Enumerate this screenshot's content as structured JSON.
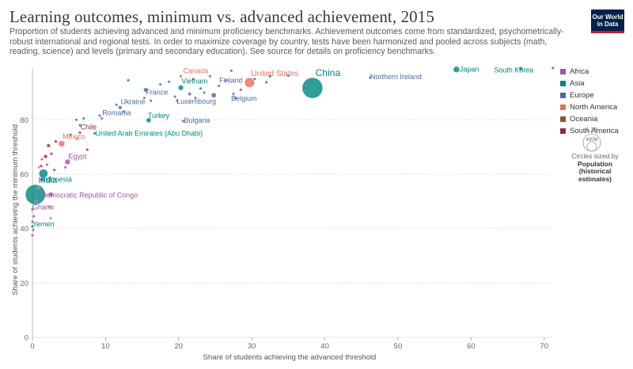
{
  "header": {
    "title": "Learning outcomes, minimum vs. advanced achievement, 2015",
    "subtitle": "Proportion of students achieving advanced and minimum proficiency benchmarks. Achievement outcomes come from standardized, psychometrically-robust international and regional tests. In order to maximize coverage by country, tests have been harmonized and pooled across subjects (math, reading, science) and levels (primary and secondary education). See source for details on proficiency benchmarks.",
    "logo_line1": "Our World",
    "logo_line2": "in Data"
  },
  "colors": {
    "Africa": "#a2559c",
    "Asia": "#00847e",
    "Europe": "#4c6a9c",
    "North America": "#e56e5a",
    "Oceania": "#9a5129",
    "South America": "#883039",
    "logo_bg": "#002147",
    "logo_bar": "#be1e2d",
    "gridline": "#dddddd"
  },
  "legend": {
    "items": [
      "Africa",
      "Asia",
      "Europe",
      "North America",
      "Oceania",
      "South America"
    ],
    "size_key_value": "1.2B",
    "size_key_small": "400M",
    "size_caption": "Circles sized by",
    "size_caption_bold": "Population (historical estimates)"
  },
  "chart_data": {
    "type": "scatter",
    "xlabel": "Share of students achieving the advanced threshold",
    "ylabel": "Share of students achieving the minimum threshold",
    "xlim": [
      0,
      71
    ],
    "ylim": [
      0,
      99
    ],
    "xticks": [
      0,
      10,
      20,
      30,
      40,
      50,
      60,
      70
    ],
    "yticks": [
      0,
      20,
      40,
      60,
      80
    ],
    "grid": "horizontal",
    "size_by": "population",
    "points": [
      {
        "label": "China",
        "x": 38.3,
        "y": 91.7,
        "region": "Asia",
        "pop": 1400
      },
      {
        "label": "India",
        "x": 0.4,
        "y": 52.5,
        "region": "Asia",
        "pop": 1310
      },
      {
        "label": "Indonesia",
        "x": 1.5,
        "y": 60.2,
        "region": "Asia",
        "pop": 258
      },
      {
        "label": "Democratic Republic of Congo",
        "x": 2.5,
        "y": 52.5,
        "region": "Africa",
        "pop": 78
      },
      {
        "label": "Ghana",
        "x": 0.0,
        "y": 47.0,
        "region": "Africa",
        "pop": 28
      },
      {
        "label": "Yemen",
        "x": 0.0,
        "y": 40.8,
        "region": "Asia",
        "pop": 27
      },
      {
        "label": "Egypt",
        "x": 4.8,
        "y": 64.5,
        "region": "Africa",
        "pop": 94
      },
      {
        "label": "Mexico",
        "x": 4.0,
        "y": 71.2,
        "region": "North America",
        "pop": 125
      },
      {
        "label": "Chile",
        "x": 6.5,
        "y": 75.3,
        "region": "South America",
        "pop": 18
      },
      {
        "label": "United Arab Emirates (Abu Dhabi)",
        "x": 8.5,
        "y": 75.0,
        "region": "Asia",
        "pop": 9
      },
      {
        "label": "Romania",
        "x": 9.5,
        "y": 80.5,
        "region": "Europe",
        "pop": 20
      },
      {
        "label": "Ukraine",
        "x": 12.0,
        "y": 84.5,
        "region": "Europe",
        "pop": 45
      },
      {
        "label": "Turkey",
        "x": 15.9,
        "y": 79.8,
        "region": "Asia",
        "pop": 78
      },
      {
        "label": "Bulgaria",
        "x": 20.6,
        "y": 79.5,
        "region": "Europe",
        "pop": 7
      },
      {
        "label": "France",
        "x": 15.5,
        "y": 91.0,
        "region": "Europe",
        "pop": 66
      },
      {
        "label": "Luxembourg",
        "x": 19.5,
        "y": 88.5,
        "region": "Europe",
        "pop": 1
      },
      {
        "label": "Vietnam",
        "x": 20.3,
        "y": 91.8,
        "region": "Asia",
        "pop": 92
      },
      {
        "label": "Canada",
        "x": 20.3,
        "y": 96.0,
        "region": "North America",
        "pop": 36
      },
      {
        "label": "Finland",
        "x": 25.5,
        "y": 92.5,
        "region": "Europe",
        "pop": 5.5
      },
      {
        "label": "Belgium",
        "x": 27.5,
        "y": 89.5,
        "region": "Europe",
        "pop": 11
      },
      {
        "label": "United States",
        "x": 29.7,
        "y": 93.7,
        "region": "North America",
        "pop": 320
      },
      {
        "label": "Northern Ireland",
        "x": 46.2,
        "y": 95.5,
        "region": "Europe",
        "pop": 2
      },
      {
        "label": "Japan",
        "x": 58.0,
        "y": 98.5,
        "region": "Asia",
        "pop": 127
      },
      {
        "label": "South Korea",
        "x": 66.8,
        "y": 98.8,
        "region": "Asia",
        "pop": 51
      },
      {
        "label": "",
        "x": 71.2,
        "y": 99.0,
        "region": "Asia",
        "pop": 5.6
      },
      {
        "label": "",
        "x": 13.1,
        "y": 94.5,
        "region": "Asia",
        "pop": 3
      },
      {
        "label": "",
        "x": 15.3,
        "y": 88.0,
        "region": "Europe",
        "pop": 16
      },
      {
        "label": "",
        "x": 16.2,
        "y": 87.0,
        "region": "Europe",
        "pop": 10
      },
      {
        "label": "",
        "x": 17.5,
        "y": 93.0,
        "region": "Europe",
        "pop": 4
      },
      {
        "label": "",
        "x": 18.7,
        "y": 94.0,
        "region": "Europe",
        "pop": 2
      },
      {
        "label": "",
        "x": 19.8,
        "y": 87.0,
        "region": "Europe",
        "pop": 8
      },
      {
        "label": "",
        "x": 21.5,
        "y": 89.5,
        "region": "Europe",
        "pop": 38
      },
      {
        "label": "",
        "x": 22.3,
        "y": 88.0,
        "region": "Europe",
        "pop": 9
      },
      {
        "label": "",
        "x": 23.0,
        "y": 91.5,
        "region": "Asia",
        "pop": 23
      },
      {
        "label": "",
        "x": 23.5,
        "y": 90.0,
        "region": "Europe",
        "pop": 5
      },
      {
        "label": "",
        "x": 24.3,
        "y": 96.0,
        "region": "Europe",
        "pop": 10
      },
      {
        "label": "",
        "x": 24.8,
        "y": 89.0,
        "region": "Europe",
        "pop": 82
      },
      {
        "label": "",
        "x": 26.5,
        "y": 94.5,
        "region": "Europe",
        "pop": 5
      },
      {
        "label": "",
        "x": 27.2,
        "y": 98.0,
        "region": "Europe",
        "pop": 1.3
      },
      {
        "label": "",
        "x": 27.8,
        "y": 88.0,
        "region": "Europe",
        "pop": 9
      },
      {
        "label": "",
        "x": 28.5,
        "y": 91.0,
        "region": "Oceania",
        "pop": 4.6
      },
      {
        "label": "",
        "x": 30.4,
        "y": 95.0,
        "region": "Europe",
        "pop": 17
      },
      {
        "label": "",
        "x": 32.0,
        "y": 93.8,
        "region": "Europe",
        "pop": 8
      },
      {
        "label": "",
        "x": 32.5,
        "y": 96.0,
        "region": "Asia",
        "pop": 7
      },
      {
        "label": "",
        "x": 35.0,
        "y": 96.2,
        "region": "Europe",
        "pop": 4
      },
      {
        "label": "",
        "x": 22.0,
        "y": 95.0,
        "region": "Oceania",
        "pop": 24
      },
      {
        "label": "",
        "x": 11.5,
        "y": 85.5,
        "region": "Europe",
        "pop": 10
      },
      {
        "label": "",
        "x": 12.5,
        "y": 83.0,
        "region": "Europe",
        "pop": 7
      },
      {
        "label": "",
        "x": 9.2,
        "y": 81.5,
        "region": "Europe",
        "pop": 4
      },
      {
        "label": "",
        "x": 7.0,
        "y": 80.5,
        "region": "Europe",
        "pop": 4
      },
      {
        "label": "",
        "x": 6.0,
        "y": 80.0,
        "region": "Europe",
        "pop": 2
      },
      {
        "label": "",
        "x": 6.5,
        "y": 78.0,
        "region": "Asia",
        "pop": 2
      },
      {
        "label": "",
        "x": 5.2,
        "y": 74.5,
        "region": "South America",
        "pop": 4
      },
      {
        "label": "",
        "x": 6.1,
        "y": 73.0,
        "region": "North America",
        "pop": 5
      },
      {
        "label": "",
        "x": 7.5,
        "y": 69.0,
        "region": "South America",
        "pop": 17
      },
      {
        "label": "",
        "x": 3.2,
        "y": 72.0,
        "region": "South America",
        "pop": 31
      },
      {
        "label": "",
        "x": 2.2,
        "y": 70.5,
        "region": "South America",
        "pop": 44
      },
      {
        "label": "",
        "x": 1.8,
        "y": 66.5,
        "region": "South America",
        "pop": 48
      },
      {
        "label": "",
        "x": 2.6,
        "y": 67.5,
        "region": "South America",
        "pop": 10
      },
      {
        "label": "",
        "x": 1.3,
        "y": 65.5,
        "region": "Africa",
        "pop": 24
      },
      {
        "label": "",
        "x": 1.2,
        "y": 63.0,
        "region": "South America",
        "pop": 16
      },
      {
        "label": "",
        "x": 0.9,
        "y": 62.5,
        "region": "North America",
        "pop": 16
      },
      {
        "label": "",
        "x": 2.0,
        "y": 63.5,
        "region": "Africa",
        "pop": 10
      },
      {
        "label": "",
        "x": 3.0,
        "y": 61.5,
        "region": "South America",
        "pop": 6
      },
      {
        "label": "",
        "x": 4.5,
        "y": 62.5,
        "region": "Africa",
        "pop": 11
      },
      {
        "label": "",
        "x": 1.3,
        "y": 58.0,
        "region": "Africa",
        "pop": 55
      },
      {
        "label": "",
        "x": 0.8,
        "y": 55.0,
        "region": "Africa",
        "pop": 24
      },
      {
        "label": "",
        "x": 0.5,
        "y": 50.0,
        "region": "Africa",
        "pop": 16
      },
      {
        "label": "",
        "x": 2.3,
        "y": 48.0,
        "region": "Africa",
        "pop": 12
      },
      {
        "label": "",
        "x": 0.2,
        "y": 44.5,
        "region": "Africa",
        "pop": 15
      },
      {
        "label": "",
        "x": 0.0,
        "y": 42.5,
        "region": "Africa",
        "pop": 19
      },
      {
        "label": "",
        "x": 0.1,
        "y": 39.5,
        "region": "Africa",
        "pop": 17
      },
      {
        "label": "",
        "x": 0.0,
        "y": 37.5,
        "region": "Africa",
        "pop": 11
      },
      {
        "label": "",
        "x": 2.5,
        "y": 43.8,
        "region": "North America",
        "pop": 7
      }
    ]
  }
}
